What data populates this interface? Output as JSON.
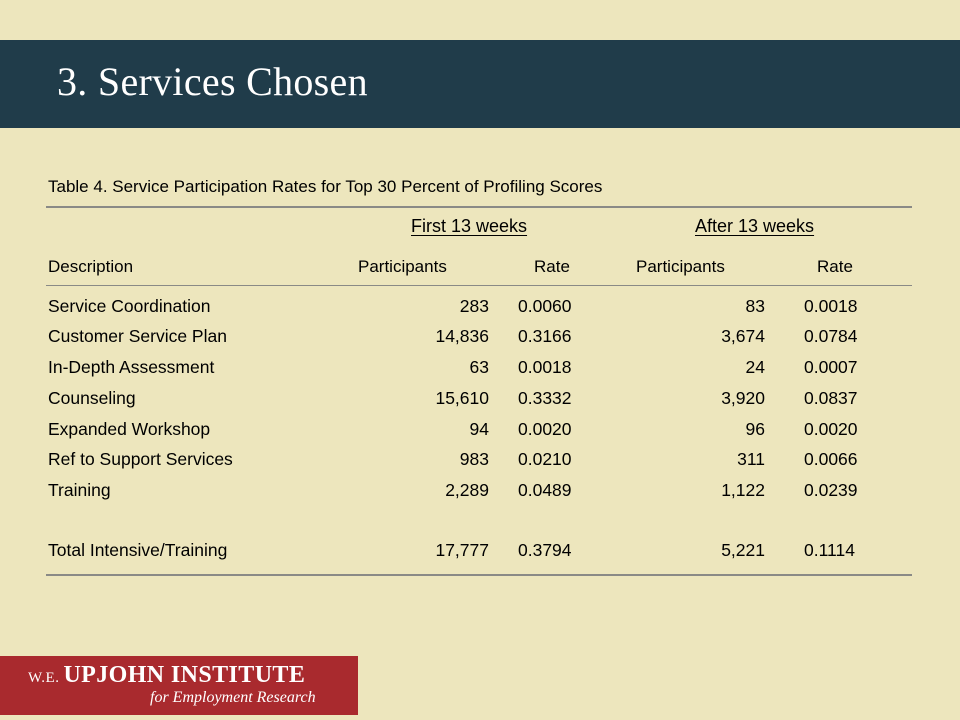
{
  "slide": {
    "title": "3.  Services Chosen"
  },
  "table": {
    "caption": "Table 4.  Service Participation Rates for Top 30 Percent of Profiling Scores",
    "group_headers": [
      "First 13 weeks",
      "After 13 weeks"
    ],
    "column_headers": [
      "Description",
      "Participants",
      "Rate",
      "Participants",
      "Rate"
    ],
    "rows": [
      [
        "Service Coordination",
        "283",
        "0.0060",
        "83",
        "0.0018"
      ],
      [
        "Customer Service Plan",
        "14,836",
        "0.3166",
        "3,674",
        "0.0784"
      ],
      [
        "In-Depth Assessment",
        "63",
        "0.0018",
        "24",
        "0.0007"
      ],
      [
        "Counseling",
        "15,610",
        "0.3332",
        "3,920",
        "0.0837"
      ],
      [
        "Expanded Workshop",
        "94",
        "0.0020",
        "96",
        "0.0020"
      ],
      [
        "Ref to Support Services",
        "983",
        "0.0210",
        "311",
        "0.0066"
      ],
      [
        "Training",
        "2,289",
        "0.0489",
        "1,122",
        "0.0239"
      ],
      [
        "Total Intensive/Training",
        "17,777",
        "0.3794",
        "5,221",
        "0.1114"
      ]
    ]
  },
  "logo": {
    "prefix": "W.E.",
    "name": "UPJOHN INSTITUTE",
    "tagline": "for Employment Research"
  }
}
